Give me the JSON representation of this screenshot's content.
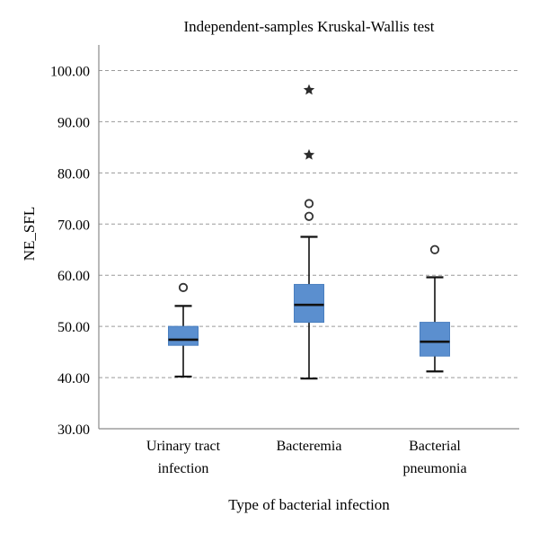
{
  "chart_data": {
    "type": "boxplot",
    "title": "Independent-samples Kruskal-Wallis test",
    "xlabel": "Type of bacterial infection",
    "ylabel": "NE_SFL",
    "ylim": [
      30,
      105
    ],
    "yticks": [
      "30.00",
      "40.00",
      "50.00",
      "60.00",
      "70.00",
      "80.00",
      "90.00",
      "100.00"
    ],
    "grid": true,
    "box_color": "#5b8fcf",
    "categories": [
      {
        "lines": [
          "Urinary tract",
          "infection"
        ],
        "whisker_low": 40.2,
        "q1": 46.3,
        "median": 47.4,
        "q3": 50.0,
        "whisker_high": 54.0,
        "outliers": [
          57.6
        ],
        "extremes": []
      },
      {
        "lines": [
          "Bacteremia"
        ],
        "whisker_low": 39.8,
        "q1": 50.8,
        "median": 54.2,
        "q3": 58.2,
        "whisker_high": 67.5,
        "outliers": [
          71.5,
          74.0
        ],
        "extremes": [
          83.5,
          96.2
        ]
      },
      {
        "lines": [
          "Bacterial",
          "pneumonia"
        ],
        "whisker_low": 41.2,
        "q1": 44.2,
        "median": 47.0,
        "q3": 50.8,
        "whisker_high": 59.6,
        "outliers": [
          65.0
        ],
        "extremes": []
      }
    ]
  }
}
